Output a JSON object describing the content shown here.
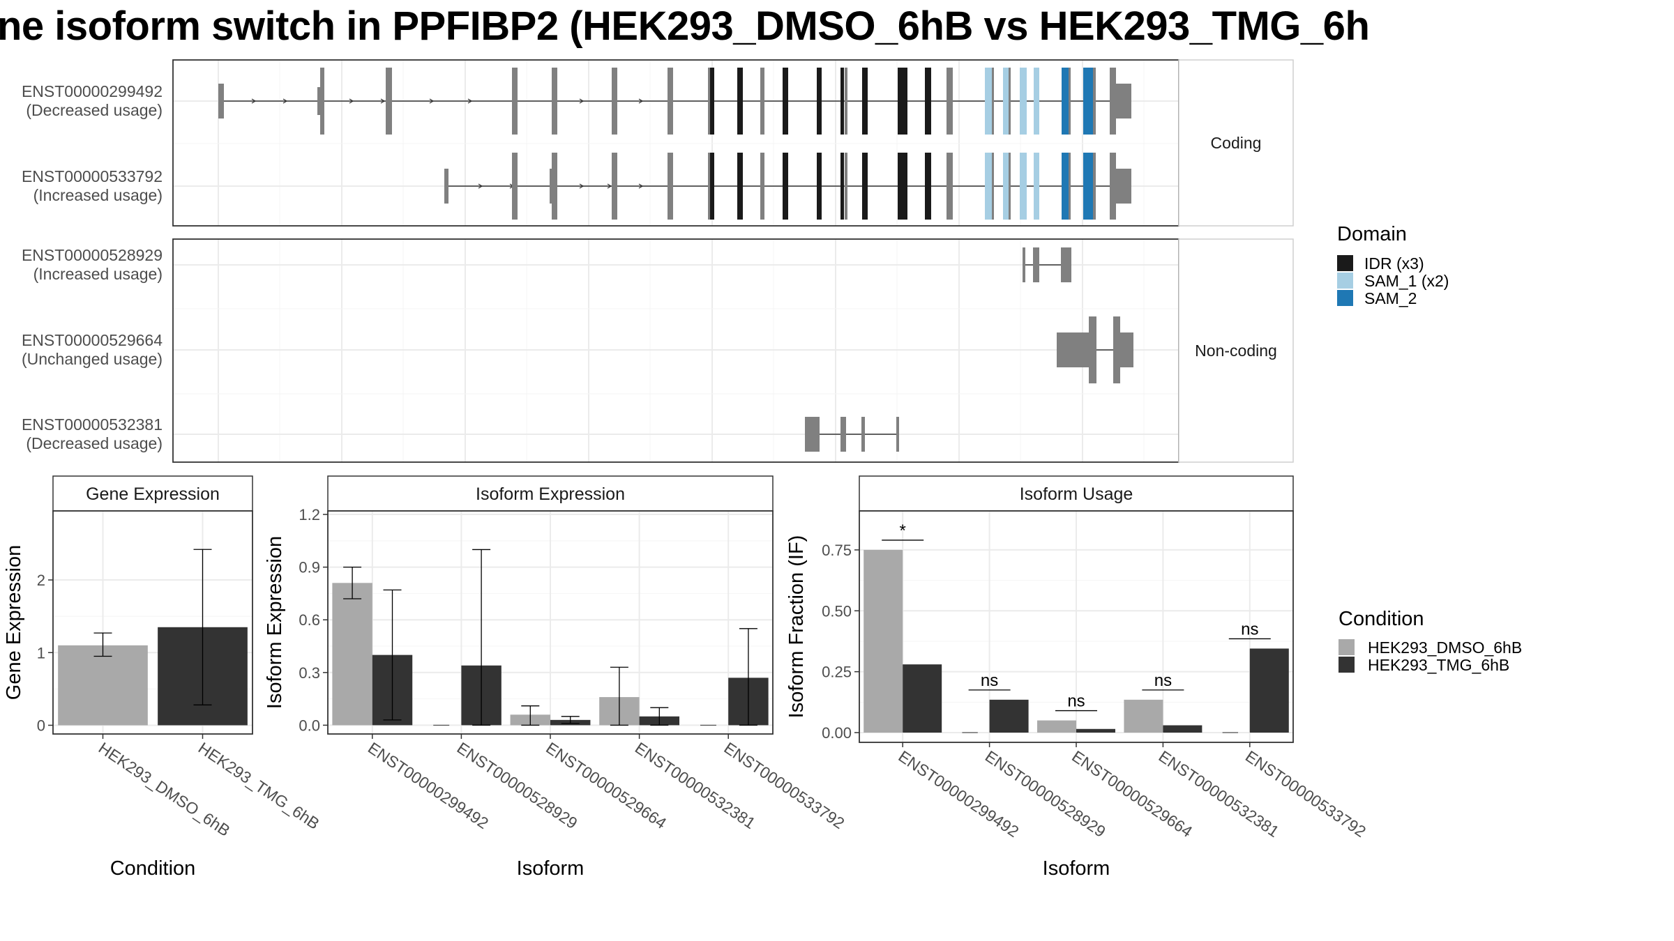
{
  "title": "ne isoform switch in PPFIBP2 (HEK293_DMSO_6hB vs HEK293_TMG_6h",
  "structure": {
    "facet_labels": [
      "Coding",
      "Non-coding"
    ],
    "transcripts": [
      {
        "id": "ENST00000299492",
        "label1": "ENST00000299492",
        "label2": "(Decreased usage)",
        "facet": "Coding"
      },
      {
        "id": "ENST00000533792",
        "label1": "ENST00000533792",
        "label2": "(Increased usage)",
        "facet": "Coding"
      },
      {
        "id": "ENST00000528929",
        "label1": "ENST00000528929",
        "label2": "(Increased usage)",
        "facet": "Non-coding"
      },
      {
        "id": "ENST00000529664",
        "label1": "ENST00000529664",
        "label2": "(Unchanged usage)",
        "facet": "Non-coding"
      },
      {
        "id": "ENST00000532381",
        "label1": "ENST00000532381",
        "label2": "(Decreased usage)",
        "facet": "Non-coding"
      }
    ],
    "domain_legend": {
      "title": "Domain",
      "items": [
        {
          "label": "IDR (x3)",
          "color": "#1a1a1a"
        },
        {
          "label": "SAM_1 (x2)",
          "color": "#a6cee3"
        },
        {
          "label": "SAM_2",
          "color": "#1f78b4"
        }
      ]
    },
    "colors": {
      "exon_default": "#808080",
      "idr": "#1a1a1a",
      "sam1": "#a6cee3",
      "sam2": "#1f78b4"
    }
  },
  "condition_legend": {
    "title": "Condition",
    "items": [
      {
        "label": "HEK293_DMSO_6hB",
        "color": "#a9a9a9"
      },
      {
        "label": "HEK293_TMG_6hB",
        "color": "#333333"
      }
    ]
  },
  "chart_data": [
    {
      "type": "bar",
      "title": "Gene Expression",
      "xlabel": "Condition",
      "ylabel": "Gene Expression",
      "categories": [
        "HEK293_DMSO_6hB",
        "HEK293_TMG_6hB"
      ],
      "values": [
        1.1,
        1.35
      ],
      "error_low": [
        0.95,
        0.28
      ],
      "error_high": [
        1.27,
        2.42
      ],
      "ylim": [
        -0.12,
        2.95
      ],
      "yticks": [
        0,
        1,
        2
      ],
      "ytick_labels": [
        "0",
        "1",
        "2"
      ]
    },
    {
      "type": "bar",
      "title": "Isoform Expression",
      "xlabel": "Isoform",
      "ylabel": "Isoform Expression",
      "categories": [
        "ENST00000299492",
        "ENST00000528929",
        "ENST00000529664",
        "ENST00000532381",
        "ENST00000533792"
      ],
      "series": [
        {
          "name": "HEK293_DMSO_6hB",
          "values": [
            0.81,
            0.0,
            0.06,
            0.16,
            0.0
          ],
          "error_low": [
            0.72,
            null,
            0.0,
            0.0,
            null
          ],
          "error_high": [
            0.9,
            null,
            0.11,
            0.33,
            null
          ]
        },
        {
          "name": "HEK293_TMG_6hB",
          "values": [
            0.4,
            0.34,
            0.03,
            0.05,
            0.27
          ],
          "error_low": [
            0.03,
            0.0,
            0.01,
            0.0,
            0.0
          ],
          "error_high": [
            0.77,
            1.0,
            0.05,
            0.1,
            0.55
          ]
        }
      ],
      "ylim": [
        -0.05,
        1.22
      ],
      "yticks": [
        0,
        0.3,
        0.6,
        0.9,
        1.2
      ],
      "ytick_labels": [
        "0.0",
        "0.3",
        "0.6",
        "0.9",
        "1.2"
      ]
    },
    {
      "type": "bar",
      "title": "Isoform Usage",
      "xlabel": "Isoform",
      "ylabel": "Isoform Fraction (IF)",
      "categories": [
        "ENST00000299492",
        "ENST00000528929",
        "ENST00000529664",
        "ENST00000532381",
        "ENST00000533792"
      ],
      "series": [
        {
          "name": "HEK293_DMSO_6hB",
          "values": [
            0.75,
            0.0,
            0.05,
            0.135,
            0.0
          ]
        },
        {
          "name": "HEK293_TMG_6hB",
          "values": [
            0.28,
            0.135,
            0.015,
            0.03,
            0.345
          ]
        }
      ],
      "significance": [
        "*",
        "ns",
        "ns",
        "ns",
        "ns"
      ],
      "ylim": [
        -0.04,
        0.91
      ],
      "yticks": [
        0,
        0.25,
        0.5,
        0.75
      ],
      "ytick_labels": [
        "0.00",
        "0.25",
        "0.50",
        "0.75"
      ]
    }
  ]
}
